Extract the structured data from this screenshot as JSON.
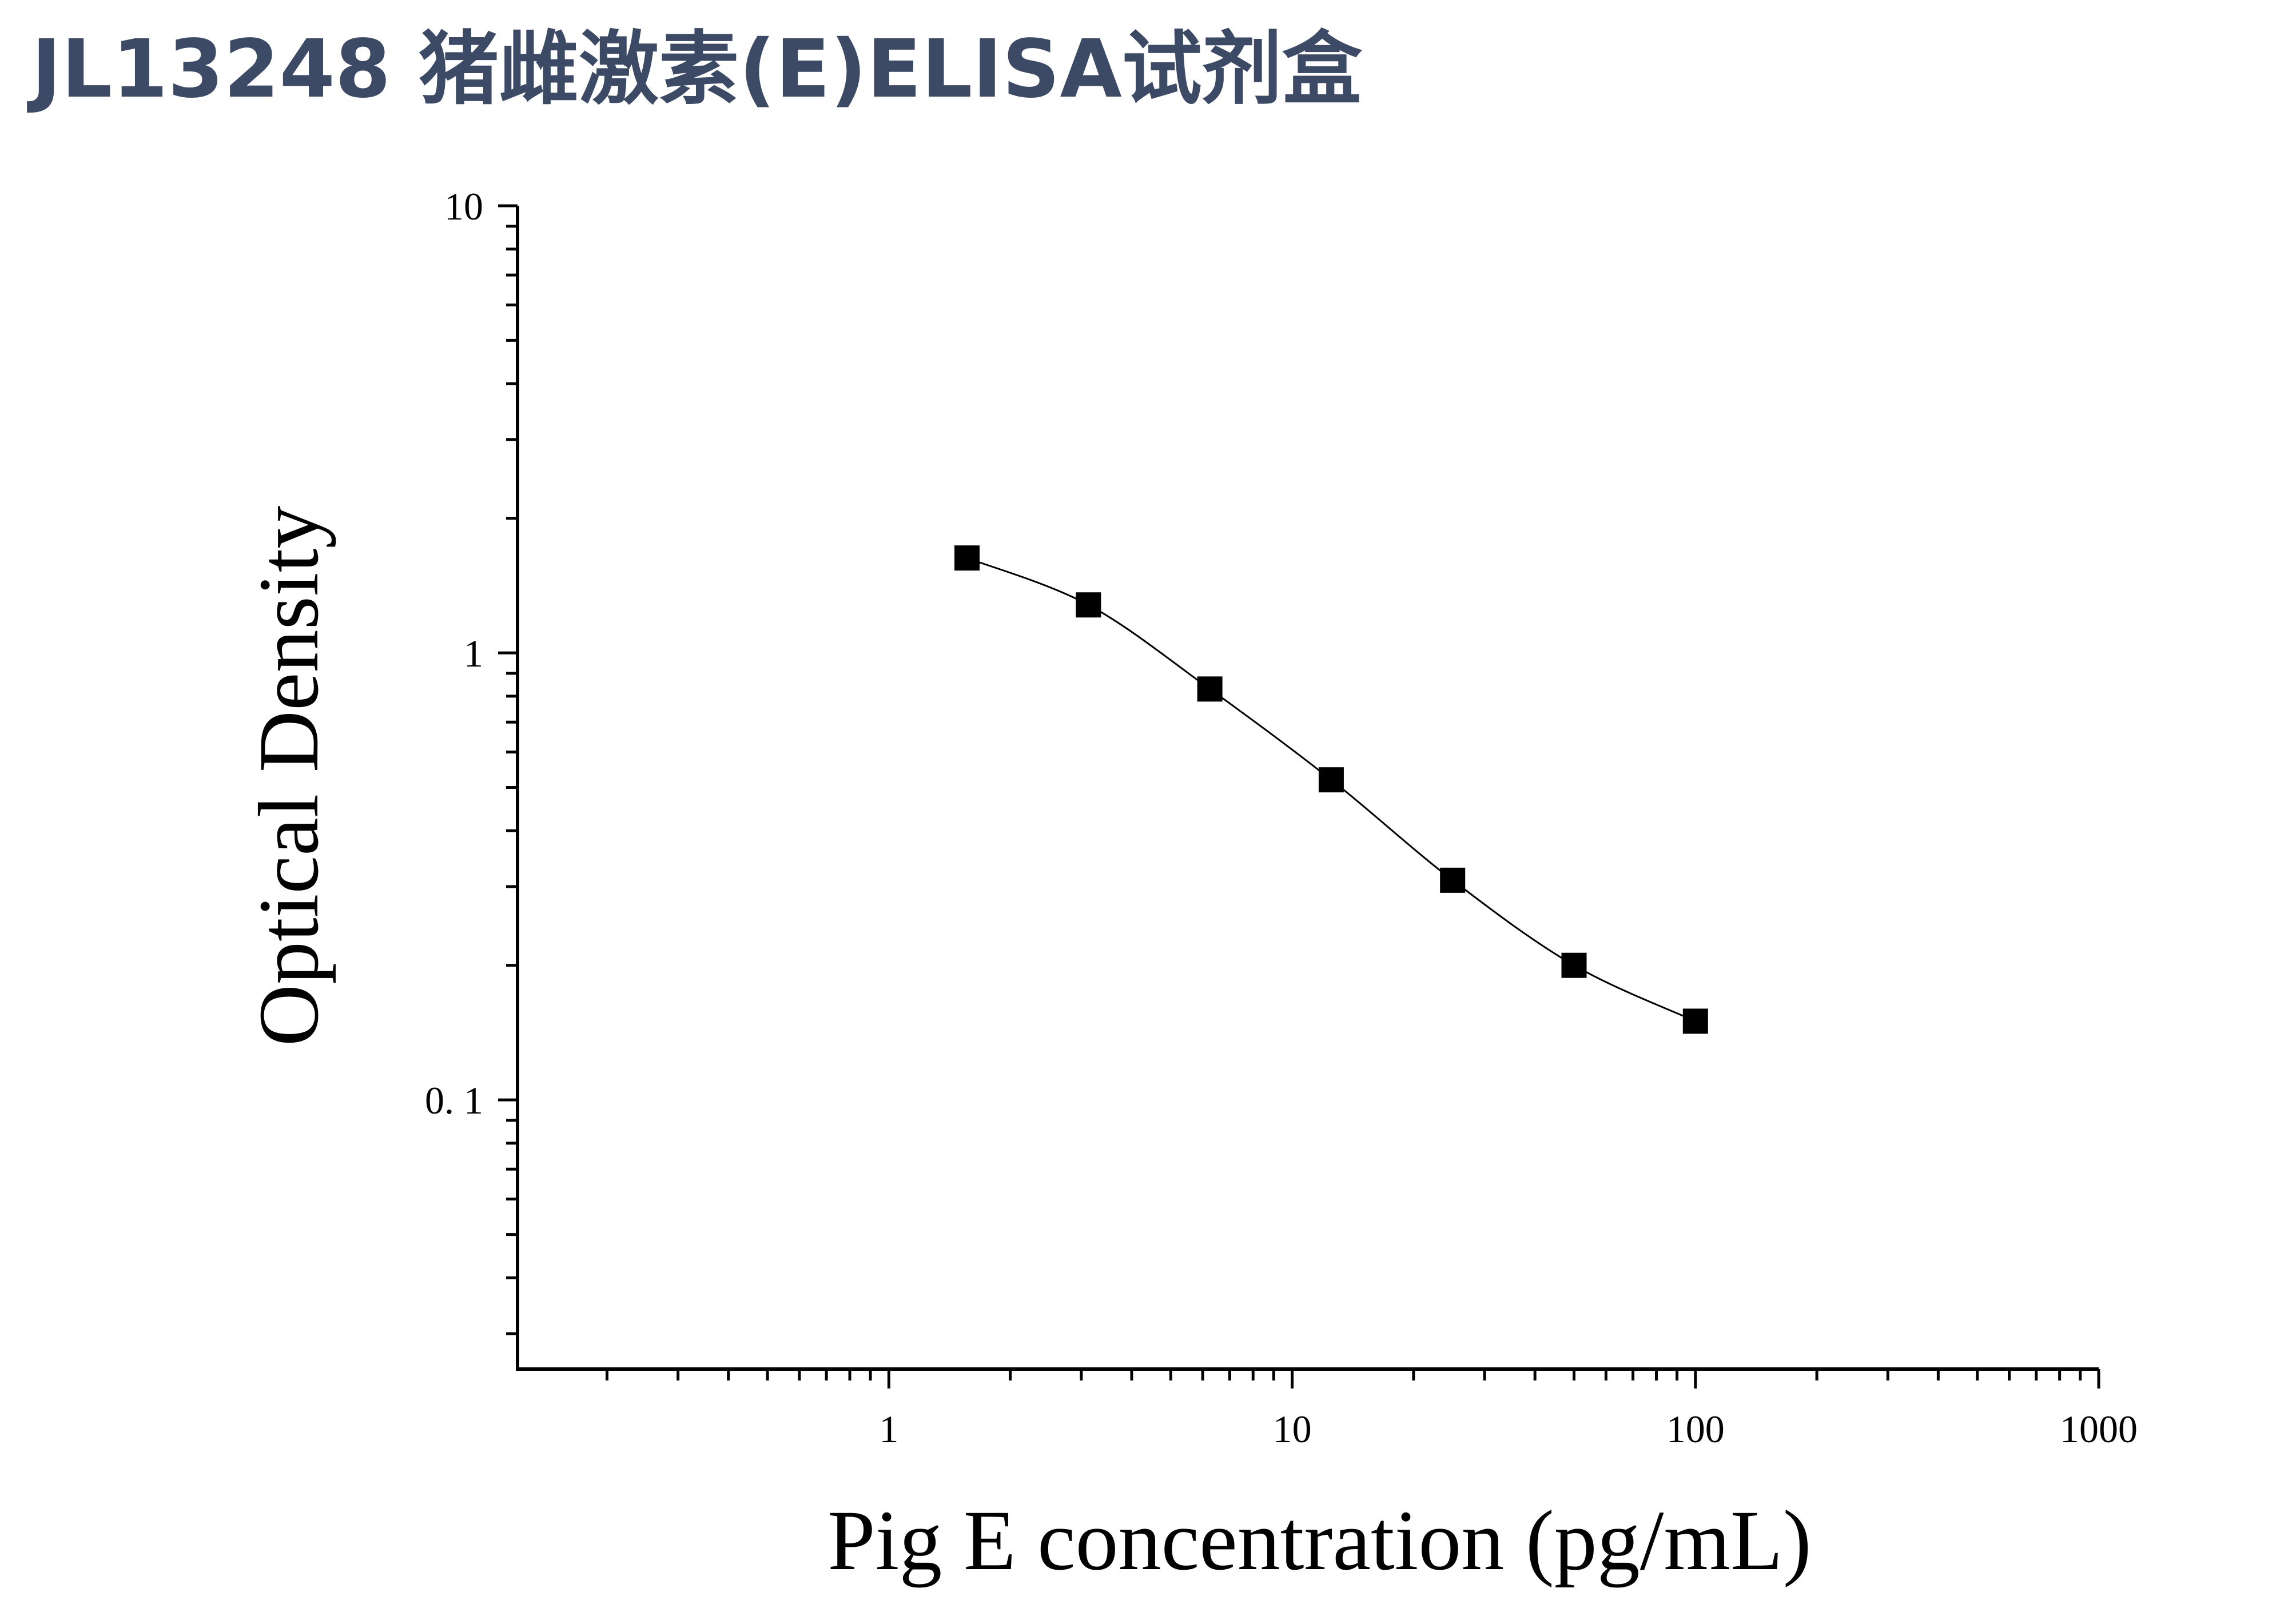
{
  "title": "JL13248 猪雌激素(E)ELISA试剂盒",
  "colors": {
    "title": "#3c4a66",
    "axis": "#000000",
    "marker": "#000000",
    "curve": "#000000"
  },
  "chart_data": {
    "type": "scatter",
    "title": "",
    "xlabel": "Pig E concentration (pg/mL)",
    "ylabel": "Optical Density",
    "xscale": "log",
    "yscale": "log",
    "xlim": [
      0.12,
      1000
    ],
    "ylim": [
      0.025,
      10
    ],
    "xticks": [
      1,
      10,
      100,
      1000
    ],
    "xtick_labels": [
      "1",
      "10",
      "100",
      "1000"
    ],
    "yticks": [
      0.1,
      1,
      10
    ],
    "ytick_labels": [
      "0. 1",
      "1",
      "10"
    ],
    "grid": false,
    "legend": "none",
    "series": [
      {
        "marker": "square",
        "x": [
          1.5625,
          3.125,
          6.25,
          12.5,
          25,
          50,
          100
        ],
        "y": [
          1.63,
          1.28,
          0.83,
          0.52,
          0.31,
          0.2,
          0.15
        ],
        "fit_curve": true
      }
    ]
  }
}
